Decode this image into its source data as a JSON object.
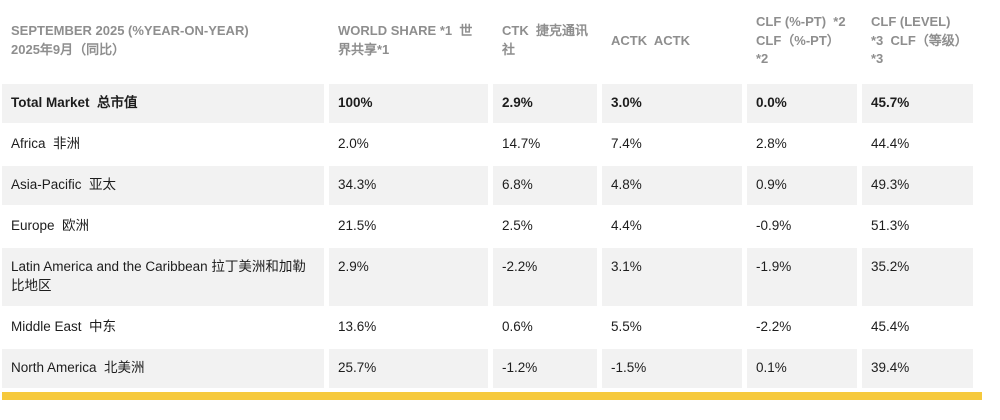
{
  "colors": {
    "header_text": "#8e8e8e",
    "body_text": "#1d1d1d",
    "alt_row_bg": "#f2f2f2",
    "accent_bar": "#f6c93c"
  },
  "table": {
    "headers": [
      "SEPTEMBER 2025 (%YEAR-ON-YEAR)\n2025年9月（同比）",
      "WORLD SHARE *1  世界共享*1",
      "CTK  捷克通讯社",
      "ACTK  ACTK",
      "CLF (%-PT)  *2  CLF（%-PT）*2",
      "CLF (LEVEL)  *3  CLF（等级）*3"
    ],
    "rows": [
      {
        "cells": [
          "Total Market  总市值",
          "100%",
          "2.9%",
          "3.0%",
          "0.0%",
          "45.7%"
        ]
      },
      {
        "cells": [
          "Africa  非洲",
          "2.0%",
          "14.7%",
          "7.4%",
          "2.8%",
          "44.4%"
        ]
      },
      {
        "cells": [
          "Asia-Pacific  亚太",
          "34.3%",
          "6.8%",
          "4.8%",
          "0.9%",
          "49.3%"
        ]
      },
      {
        "cells": [
          "Europe  欧洲",
          "21.5%",
          "2.5%",
          "4.4%",
          "-0.9%",
          "51.3%"
        ]
      },
      {
        "cells": [
          "Latin America and the Caribbean 拉丁美洲和加勒比地区",
          "2.9%",
          "-2.2%",
          "3.1%",
          "-1.9%",
          "35.2%"
        ]
      },
      {
        "cells": [
          "Middle East  中东",
          "13.6%",
          "0.6%",
          "5.5%",
          "-2.2%",
          "45.4%"
        ]
      },
      {
        "cells": [
          "North America  北美洲",
          "25.7%",
          "-1.2%",
          "-1.5%",
          "0.1%",
          "39.4%"
        ]
      }
    ]
  },
  "chart_data": {
    "type": "table",
    "title": "SEPTEMBER 2025 (%YEAR-ON-YEAR) 2025年9月（同比）",
    "columns": [
      "WORLD SHARE *1",
      "CTK",
      "ACTK",
      "CLF (%-PT) *2",
      "CLF (LEVEL) *3"
    ],
    "rows": [
      {
        "region": "Total Market",
        "region_zh": "总市值",
        "world_share_pct": 100,
        "ctk_yoy_pct": 2.9,
        "actk_yoy_pct": 3.0,
        "clf_change_ppt": 0.0,
        "clf_level_pct": 45.7
      },
      {
        "region": "Africa",
        "region_zh": "非洲",
        "world_share_pct": 2.0,
        "ctk_yoy_pct": 14.7,
        "actk_yoy_pct": 7.4,
        "clf_change_ppt": 2.8,
        "clf_level_pct": 44.4
      },
      {
        "region": "Asia-Pacific",
        "region_zh": "亚太",
        "world_share_pct": 34.3,
        "ctk_yoy_pct": 6.8,
        "actk_yoy_pct": 4.8,
        "clf_change_ppt": 0.9,
        "clf_level_pct": 49.3
      },
      {
        "region": "Europe",
        "region_zh": "欧洲",
        "world_share_pct": 21.5,
        "ctk_yoy_pct": 2.5,
        "actk_yoy_pct": 4.4,
        "clf_change_ppt": -0.9,
        "clf_level_pct": 51.3
      },
      {
        "region": "Latin America and the Caribbean",
        "region_zh": "拉丁美洲和加勒比地区",
        "world_share_pct": 2.9,
        "ctk_yoy_pct": -2.2,
        "actk_yoy_pct": 3.1,
        "clf_change_ppt": -1.9,
        "clf_level_pct": 35.2
      },
      {
        "region": "Middle East",
        "region_zh": "中东",
        "world_share_pct": 13.6,
        "ctk_yoy_pct": 0.6,
        "actk_yoy_pct": 5.5,
        "clf_change_ppt": -2.2,
        "clf_level_pct": 45.4
      },
      {
        "region": "North America",
        "region_zh": "北美洲",
        "world_share_pct": 25.7,
        "ctk_yoy_pct": -1.2,
        "actk_yoy_pct": -1.5,
        "clf_change_ppt": 0.1,
        "clf_level_pct": 39.4
      }
    ]
  }
}
